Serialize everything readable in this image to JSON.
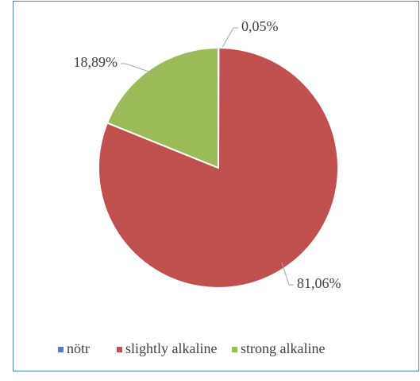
{
  "chart_data": {
    "type": "pie",
    "categories": [
      "nötr",
      "slightly alkaline",
      "strong alkaline"
    ],
    "values": [
      0.05,
      81.06,
      18.89
    ],
    "value_labels": [
      "0,05%",
      "81,06%",
      "18,89%"
    ],
    "colors": [
      "#4f81bd",
      "#c0504d",
      "#9bbb59"
    ],
    "legend": "bottom"
  }
}
